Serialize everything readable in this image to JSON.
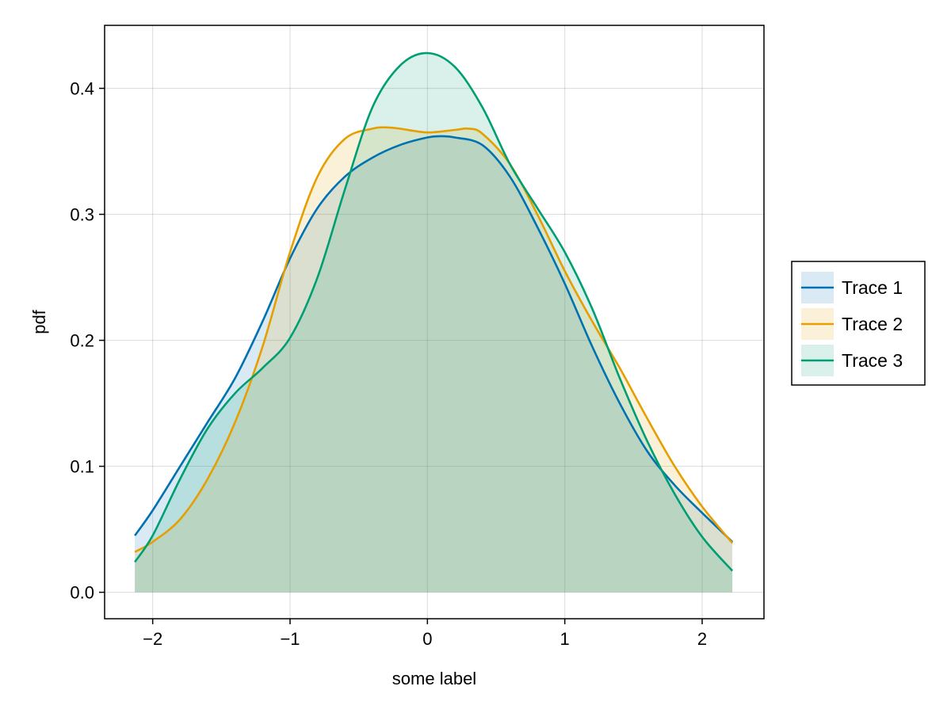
{
  "chart_data": {
    "type": "area",
    "xlabel": "some label",
    "ylabel": "pdf",
    "xlim": [
      -2.35,
      2.45
    ],
    "ylim": [
      -0.021,
      0.45
    ],
    "xticks": [
      -2,
      -1,
      0,
      1,
      2
    ],
    "xtick_labels": [
      "−2",
      "−1",
      "0",
      "1",
      "2"
    ],
    "yticks": [
      0.0,
      0.1,
      0.2,
      0.3,
      0.4
    ],
    "ytick_labels": [
      "0.0",
      "0.1",
      "0.2",
      "0.3",
      "0.4"
    ],
    "grid": true,
    "legend_position": "right",
    "series": [
      {
        "name": "Trace 1",
        "color": "#0072b2",
        "x": [
          -2.13,
          -2.0,
          -1.8,
          -1.6,
          -1.4,
          -1.2,
          -1.0,
          -0.8,
          -0.6,
          -0.4,
          -0.2,
          0.0,
          0.1,
          0.2,
          0.4,
          0.6,
          0.8,
          1.0,
          1.2,
          1.4,
          1.6,
          1.8,
          2.0,
          2.22
        ],
        "y": [
          0.045,
          0.065,
          0.1,
          0.135,
          0.17,
          0.215,
          0.265,
          0.305,
          0.33,
          0.345,
          0.355,
          0.361,
          0.362,
          0.361,
          0.355,
          0.33,
          0.29,
          0.245,
          0.195,
          0.15,
          0.112,
          0.085,
          0.063,
          0.04
        ]
      },
      {
        "name": "Trace 2",
        "color": "#e69f00",
        "x": [
          -2.13,
          -2.0,
          -1.8,
          -1.6,
          -1.4,
          -1.2,
          -1.0,
          -0.8,
          -0.6,
          -0.4,
          -0.3,
          -0.2,
          0.0,
          0.2,
          0.3,
          0.4,
          0.6,
          0.8,
          1.0,
          1.2,
          1.4,
          1.6,
          1.8,
          2.0,
          2.22
        ],
        "y": [
          0.032,
          0.04,
          0.058,
          0.09,
          0.135,
          0.195,
          0.27,
          0.33,
          0.36,
          0.368,
          0.369,
          0.368,
          0.365,
          0.367,
          0.368,
          0.364,
          0.34,
          0.3,
          0.255,
          0.215,
          0.178,
          0.138,
          0.1,
          0.068,
          0.039
        ]
      },
      {
        "name": "Trace 3",
        "color": "#009e73",
        "x": [
          -2.13,
          -2.0,
          -1.8,
          -1.6,
          -1.4,
          -1.2,
          -1.0,
          -0.8,
          -0.6,
          -0.4,
          -0.2,
          0.0,
          0.2,
          0.4,
          0.6,
          0.8,
          1.0,
          1.2,
          1.4,
          1.6,
          1.8,
          2.0,
          2.22
        ],
        "y": [
          0.024,
          0.045,
          0.09,
          0.13,
          0.158,
          0.178,
          0.202,
          0.25,
          0.32,
          0.385,
          0.418,
          0.428,
          0.417,
          0.385,
          0.34,
          0.305,
          0.27,
          0.225,
          0.17,
          0.12,
          0.078,
          0.044,
          0.017
        ]
      }
    ]
  }
}
